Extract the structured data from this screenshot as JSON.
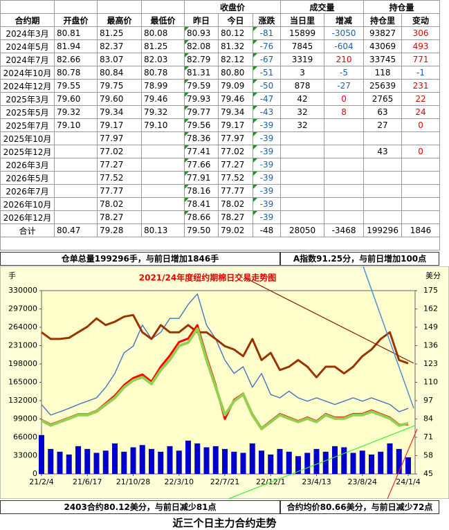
{
  "table": {
    "header_top": [
      "收盘价",
      "成交量",
      "持仓量"
    ],
    "header": [
      "合约期",
      "开盘价",
      "最高价",
      "最低价",
      "昨日",
      "今日",
      "涨跌",
      "当日里",
      "增减",
      "持仓里",
      "变动"
    ],
    "rows": [
      [
        "2024年3月",
        "80.81",
        "81.25",
        "80.08",
        "80.93",
        "80.12",
        "-81",
        "15899",
        "-3050",
        "93827",
        "306"
      ],
      [
        "2024年5月",
        "81.94",
        "82.37",
        "81.25",
        "82.08",
        "81.32",
        "-76",
        "7845",
        "-604",
        "43069",
        "493"
      ],
      [
        "2024年7月",
        "82.66",
        "83.07",
        "82.03",
        "82.79",
        "82.12",
        "-67",
        "3319",
        "210",
        "33745",
        "771"
      ],
      [
        "2024年10月",
        "80.78",
        "80.84",
        "80.78",
        "81.31",
        "80.80",
        "-51",
        "3",
        "-5",
        "118",
        "-1"
      ],
      [
        "2024年12月",
        "79.55",
        "79.75",
        "78.99",
        "79.59",
        "79.09",
        "-50",
        "878",
        "-27",
        "25639",
        "231"
      ],
      [
        "2025年3月",
        "79.60",
        "79.60",
        "79.46",
        "79.93",
        "79.46",
        "-47",
        "42",
        "0",
        "2765",
        "22"
      ],
      [
        "2025年5月",
        "79.32",
        "79.34",
        "79.32",
        "79.77",
        "79.34",
        "-43",
        "32",
        "8",
        "63",
        "24"
      ],
      [
        "2025年7月",
        "79.10",
        "79.17",
        "79.10",
        "79.56",
        "79.17",
        "-39",
        "32",
        null,
        "27",
        "0"
      ],
      [
        "2025年10月",
        null,
        "77.97",
        null,
        "78.36",
        "77.97",
        "-39",
        null,
        null,
        null,
        null
      ],
      [
        "2025年12月",
        null,
        "77.02",
        null,
        "77.41",
        "77.02",
        "-39",
        null,
        null,
        "43",
        "0"
      ],
      [
        "2026年3月",
        null,
        "77.27",
        null,
        "77.66",
        "77.27",
        "-39",
        null,
        null,
        null,
        null
      ],
      [
        "2026年5月",
        null,
        "77.52",
        null,
        "77.91",
        "77.52",
        "-39",
        null,
        null,
        null,
        null
      ],
      [
        "2026年7月",
        null,
        "77.77",
        null,
        "78.16",
        "77.77",
        "-39",
        null,
        null,
        null,
        null
      ],
      [
        "2026年10月",
        null,
        "78.02",
        null,
        "78.41",
        "78.02",
        "-39",
        null,
        null,
        null,
        null
      ],
      [
        "2026年12月",
        null,
        "78.27",
        null,
        "78.66",
        "78.27",
        "-39",
        null,
        null,
        null,
        null
      ]
    ],
    "total": [
      "合计",
      "80.47",
      "79.28",
      "80.13",
      "79.50",
      "79.02",
      "-48",
      "28050",
      "-3468",
      "199296",
      "1846"
    ]
  },
  "notes": {
    "warrant": "仓单总量199296手，与前日增加1846手",
    "a_index": "A指数91.25分，与前日增加100点",
    "front_contract": "2403合约80.12美分，与前日减少81点",
    "average": "合约均价80.66美分，与前日减少72点",
    "caption": "近三个日主力合约走势"
  },
  "chart_data": {
    "type": "line",
    "title": "2021/24年度纽约期棉日交易走势图",
    "y_label": "手",
    "y2_label": "美分",
    "categories": [
      "21/2/4",
      null,
      null,
      null,
      null,
      "21/6/17",
      null,
      null,
      null,
      null,
      "21/10/28",
      null,
      null,
      null,
      null,
      "22/3/10",
      null,
      null,
      null,
      null,
      "22/7/21",
      null,
      null,
      null,
      null,
      "22/12/1",
      null,
      null,
      null,
      null,
      "23/4/13",
      null,
      null,
      null,
      null,
      "23/8/24",
      null,
      null,
      null,
      null,
      "24/1/4"
    ],
    "ylim": [
      0,
      330000
    ],
    "yticks": [
      0,
      33000,
      66000,
      99000,
      132000,
      165000,
      198000,
      231000,
      264000,
      297000,
      330000
    ],
    "y2lim": [
      45,
      175
    ],
    "y2ticks": [
      45,
      58,
      71,
      84,
      97,
      110,
      123,
      136,
      149,
      162,
      175
    ],
    "background": "#ffffcc",
    "series": [
      {
        "type": "bar",
        "color": "#0000cc",
        "axis": "y",
        "values": [
          70000,
          45000,
          40000,
          35000,
          50000,
          45000,
          38000,
          42000,
          55000,
          40000,
          48000,
          52000,
          45000,
          40000,
          50000,
          42000,
          60000,
          55000,
          48000,
          50000,
          45000,
          40000,
          38000,
          55000,
          42000,
          35000,
          45000,
          40000,
          32000,
          38000,
          45000,
          40000,
          50000,
          48000,
          38000,
          42000,
          35000,
          40000,
          55000,
          45000,
          30000
        ]
      },
      {
        "type": "line",
        "color": "#4472c4",
        "axis": "y",
        "values": [
          125000,
          106000,
          112000,
          118000,
          125000,
          131000,
          137000,
          156000,
          181000,
          218000,
          230000,
          268000,
          243000,
          255000,
          280000,
          280000,
          305000,
          324000,
          268000,
          243000,
          205000,
          181000,
          193000,
          156000,
          181000,
          143000,
          137000,
          149000,
          137000,
          131000,
          137000,
          131000,
          125000,
          131000,
          137000,
          131000,
          137000,
          131000,
          125000,
          112000,
          118000
        ]
      },
      {
        "type": "line",
        "color": "#993300",
        "axis": "y",
        "values": [
          255000,
          243000,
          243000,
          245000,
          255000,
          265000,
          280000,
          268000,
          274000,
          283000,
          286000,
          255000,
          243000,
          268000,
          255000,
          255000,
          268000,
          255000,
          255000,
          243000,
          230000,
          224000,
          212000,
          243000,
          205000,
          218000,
          187000,
          193000,
          205000,
          193000,
          174000,
          193000,
          193000,
          181000,
          193000,
          212000,
          224000,
          243000,
          255000,
          205000,
          199000
        ]
      },
      {
        "type": "line",
        "color": "#ff0000",
        "axis": "y2",
        "values": [
          83.3,
          80.0,
          82.4,
          84.8,
          87.3,
          87.3,
          89.7,
          95.0,
          100.5,
          108.0,
          113.0,
          115.5,
          110.5,
          121.0,
          129.0,
          138.5,
          141.0,
          150.5,
          128.0,
          108.0,
          84.0,
          97.5,
          102.0,
          87.5,
          77.5,
          82.5,
          87.5,
          85.0,
          82.5,
          85.0,
          82.5,
          87.5,
          85.0,
          85.0,
          87.5,
          87.5,
          90.0,
          87.5,
          85.0,
          80.0,
          80.1
        ]
      },
      {
        "type": "line",
        "color": "#92d050",
        "axis": "y2",
        "values": [
          82.8,
          79.4,
          81.9,
          84.3,
          86.8,
          86.8,
          89.2,
          94.1,
          99.0,
          106.4,
          111.3,
          113.7,
          108.8,
          118.6,
          126.0,
          135.8,
          138.2,
          148.0,
          126.0,
          106.4,
          86.8,
          96.6,
          101.5,
          86.8,
          77.0,
          81.9,
          86.8,
          84.3,
          81.9,
          84.3,
          81.9,
          86.8,
          84.3,
          84.3,
          86.8,
          86.8,
          89.2,
          86.8,
          84.3,
          79.4,
          80.9
        ]
      }
    ]
  }
}
